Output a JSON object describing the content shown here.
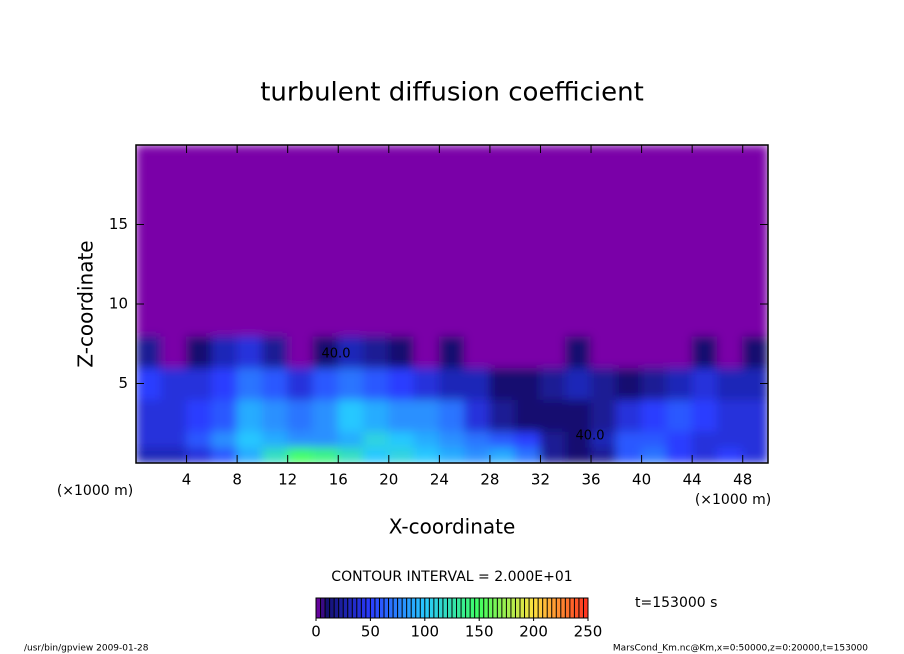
{
  "chart_data": {
    "type": "heatmap",
    "title": "turbulent diffusion coefficient",
    "x_label": "X-coordinate",
    "y_label": "Z-coordinate",
    "x_unit": "(×1000 m)",
    "x_unit_right": "(×1000 m)",
    "contour_interval": "CONTOUR INTERVAL = 2.000E+01",
    "time_label": "t=153000 s",
    "footer_left": "/usr/bin/gpview  2009-01-28",
    "footer_right": "MarsCond_Km.nc@Km,x=0:50000,z=0:20000,t=153000",
    "contour_labels": [
      "40.0",
      "40.0"
    ],
    "xlim": [
      0,
      50
    ],
    "xticks": [
      4,
      8,
      12,
      16,
      20,
      24,
      28,
      32,
      36,
      40,
      44,
      48
    ],
    "ylim": [
      0,
      20
    ],
    "yticks": [
      5,
      10,
      15
    ],
    "x_edges": [
      0,
      2,
      4,
      6,
      8,
      10,
      12,
      14,
      16,
      18,
      20,
      22,
      24,
      26,
      28,
      30,
      32,
      34,
      36,
      38,
      40,
      42,
      44,
      46,
      48,
      50
    ],
    "z_edges": [
      0,
      1,
      2,
      4,
      6,
      8,
      20
    ],
    "values": [
      [
        30,
        30,
        40,
        60,
        90,
        120,
        150,
        140,
        120,
        100,
        110,
        100,
        90,
        80,
        90,
        70,
        20,
        10,
        20,
        60,
        70,
        50,
        40,
        50,
        40
      ],
      [
        40,
        40,
        60,
        80,
        100,
        90,
        80,
        80,
        90,
        110,
        100,
        90,
        80,
        70,
        60,
        50,
        20,
        10,
        30,
        60,
        60,
        50,
        40,
        40,
        40
      ],
      [
        40,
        40,
        50,
        60,
        90,
        80,
        70,
        80,
        100,
        90,
        80,
        80,
        70,
        40,
        20,
        10,
        10,
        10,
        20,
        40,
        50,
        60,
        50,
        40,
        40
      ],
      [
        50,
        40,
        40,
        50,
        70,
        60,
        40,
        60,
        70,
        60,
        50,
        40,
        30,
        30,
        10,
        10,
        20,
        30,
        20,
        10,
        20,
        30,
        40,
        30,
        30
      ],
      [
        20,
        0,
        10,
        30,
        40,
        20,
        0,
        10,
        30,
        20,
        10,
        0,
        10,
        0,
        0,
        0,
        0,
        10,
        0,
        0,
        0,
        0,
        10,
        0,
        10
      ],
      [
        0,
        0,
        0,
        0,
        0,
        0,
        0,
        0,
        0,
        0,
        0,
        0,
        0,
        0,
        0,
        0,
        0,
        0,
        0,
        0,
        0,
        0,
        0,
        0,
        0
      ]
    ],
    "clim": [
      0,
      250
    ],
    "cticks": [
      0,
      50,
      100,
      150,
      200,
      250
    ],
    "colormap": [
      {
        "value": 0,
        "color": "#7a00a8"
      },
      {
        "value": 10,
        "color": "#141070"
      },
      {
        "value": 50,
        "color": "#2a3cff"
      },
      {
        "value": 100,
        "color": "#28c8ff"
      },
      {
        "value": 150,
        "color": "#40ff60"
      },
      {
        "value": 200,
        "color": "#ffe040"
      },
      {
        "value": 250,
        "color": "#ff3020"
      }
    ]
  }
}
